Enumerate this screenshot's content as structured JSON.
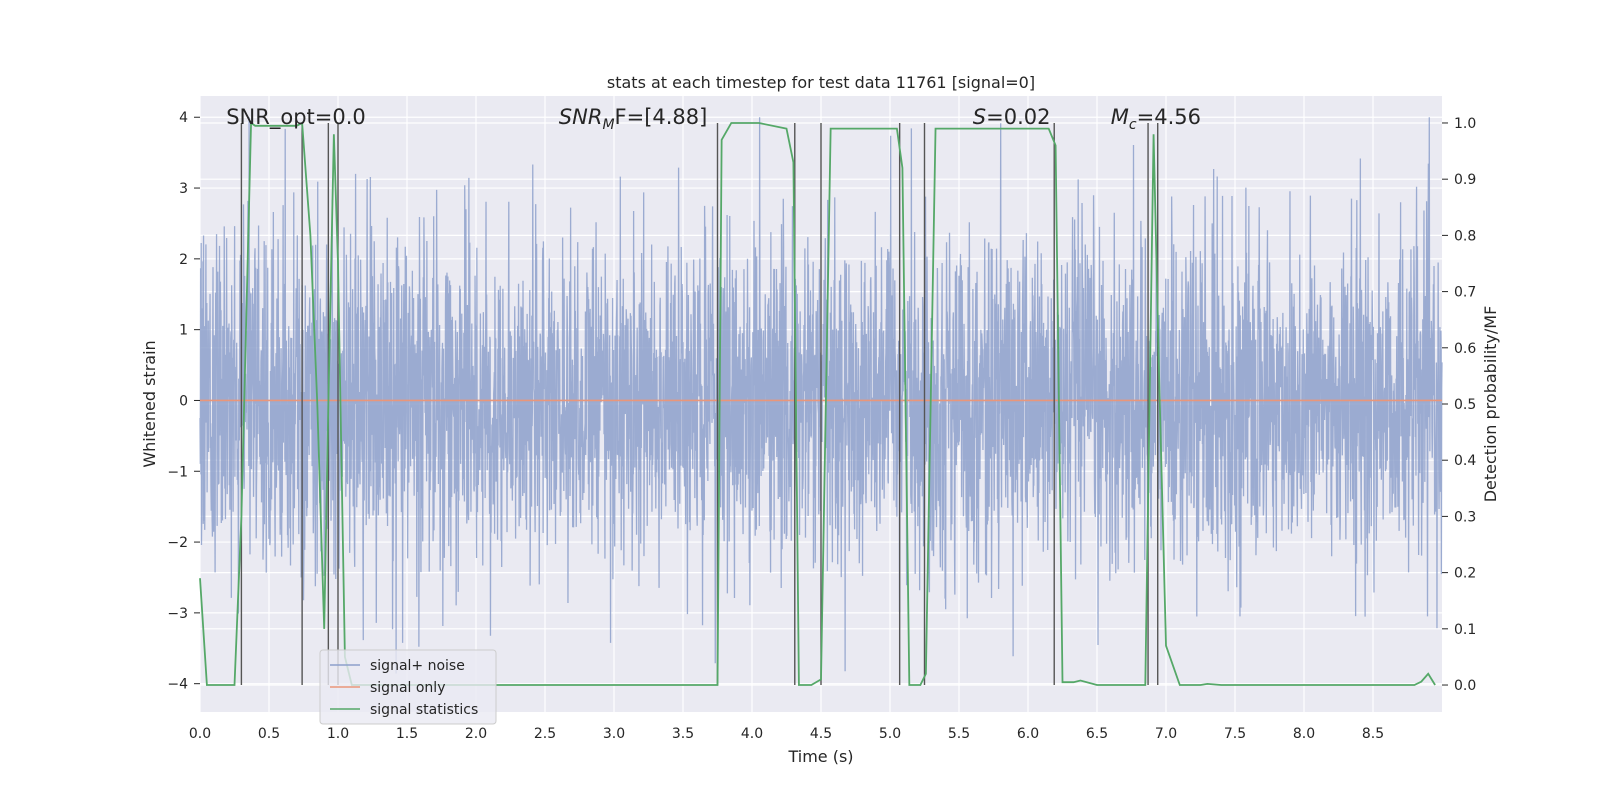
{
  "chart_data": {
    "type": "line",
    "title": "stats at each timestep for test data 11761 [signal=0]",
    "xlabel": "Time (s)",
    "ylabel_left": "Whitened strain",
    "ylabel_right": "Detection probability/MF",
    "xlim": [
      0.0,
      9.0
    ],
    "ylim_left": [
      -4.4,
      4.3
    ],
    "ylim_right": [
      -0.048,
      1.048
    ],
    "grid": true,
    "legend_placement": "lower-left",
    "x_ticks": [
      0.0,
      0.5,
      1.0,
      1.5,
      2.0,
      2.5,
      3.0,
      3.5,
      4.0,
      4.5,
      5.0,
      5.5,
      6.0,
      6.5,
      7.0,
      7.5,
      8.0,
      8.5
    ],
    "x_tick_labels": [
      "0.0",
      "0.5",
      "1.0",
      "1.5",
      "2.0",
      "2.5",
      "3.0",
      "3.5",
      "4.0",
      "4.5",
      "5.0",
      "5.5",
      "6.0",
      "6.5",
      "7.0",
      "7.5",
      "8.0",
      "8.5"
    ],
    "y_ticks_left": [
      4,
      3,
      2,
      1,
      0,
      -1,
      -2,
      -3,
      -4
    ],
    "y_tick_labels_left": [
      "4",
      "3",
      "2",
      "1",
      "0",
      "−1",
      "−2",
      "−3",
      "−4"
    ],
    "y_ticks_right": [
      1.0,
      0.9,
      0.8,
      0.7,
      0.6,
      0.5,
      0.4,
      0.3,
      0.2,
      0.1,
      0.0
    ],
    "y_tick_labels_right": [
      "1.0",
      "0.9",
      "0.8",
      "0.7",
      "0.6",
      "0.5",
      "0.4",
      "0.3",
      "0.2",
      "0.1",
      "0.0"
    ],
    "annotations": [
      {
        "key": "snr_opt",
        "text": "SNR_opt=0.0",
        "x": 0.19
      },
      {
        "key": "snr_mf",
        "main": "SNR",
        "sub": "M",
        "rest": "F=[4.88]",
        "x": 2.6
      },
      {
        "key": "s",
        "italic": "S",
        "rest": "=0.02",
        "x": 5.6
      },
      {
        "key": "mc",
        "main": "M",
        "sub": "c",
        "rest": "=4.56",
        "x": 6.6
      }
    ],
    "vertical_lines_x": [
      0.3,
      0.74,
      0.93,
      1.0,
      3.75,
      4.31,
      4.5,
      5.07,
      5.25,
      6.19,
      6.87,
      6.94
    ],
    "series": [
      {
        "name": "signal+ noise",
        "color": "#8da0cb",
        "axis": "left",
        "noise_envelope_std": 1.15,
        "noise_peak_max": 4.0,
        "noise_peak_min": -3.9
      },
      {
        "name": "signal only",
        "color": "#e9967a",
        "axis": "left",
        "x": [
          0.0,
          9.0
        ],
        "y": [
          0.0,
          0.0
        ]
      },
      {
        "name": "signal statistics",
        "color": "#55a868",
        "axis": "right",
        "x": [
          0.0,
          0.05,
          0.25,
          0.3,
          0.37,
          0.4,
          0.7,
          0.74,
          0.8,
          0.85,
          0.9,
          0.93,
          0.97,
          1.0,
          1.05,
          1.1,
          2.5,
          3.75,
          3.78,
          3.85,
          4.05,
          4.25,
          4.3,
          4.34,
          4.43,
          4.5,
          4.57,
          5.05,
          5.09,
          5.14,
          5.22,
          5.26,
          5.33,
          6.15,
          6.2,
          6.25,
          6.33,
          6.38,
          6.5,
          6.65,
          6.85,
          6.91,
          6.95,
          7.0,
          7.1,
          7.25,
          7.3,
          7.4,
          8.0,
          8.8,
          8.85,
          8.9,
          8.95
        ],
        "y": [
          0.19,
          0.0,
          0.0,
          0.3,
          1.0,
          0.995,
          0.995,
          1.0,
          0.8,
          0.5,
          0.1,
          0.5,
          0.98,
          0.75,
          0.05,
          0.0,
          0.0,
          0.0,
          0.97,
          1.0,
          1.0,
          0.99,
          0.93,
          0.0,
          0.0,
          0.01,
          0.99,
          0.99,
          0.92,
          0.0,
          0.0,
          0.02,
          0.99,
          0.99,
          0.96,
          0.005,
          0.005,
          0.008,
          0.0,
          0.0,
          0.0,
          0.98,
          0.55,
          0.07,
          0.0,
          0.0,
          0.002,
          0.0,
          0.0,
          0.0,
          0.006,
          0.02,
          0.0
        ]
      }
    ]
  }
}
